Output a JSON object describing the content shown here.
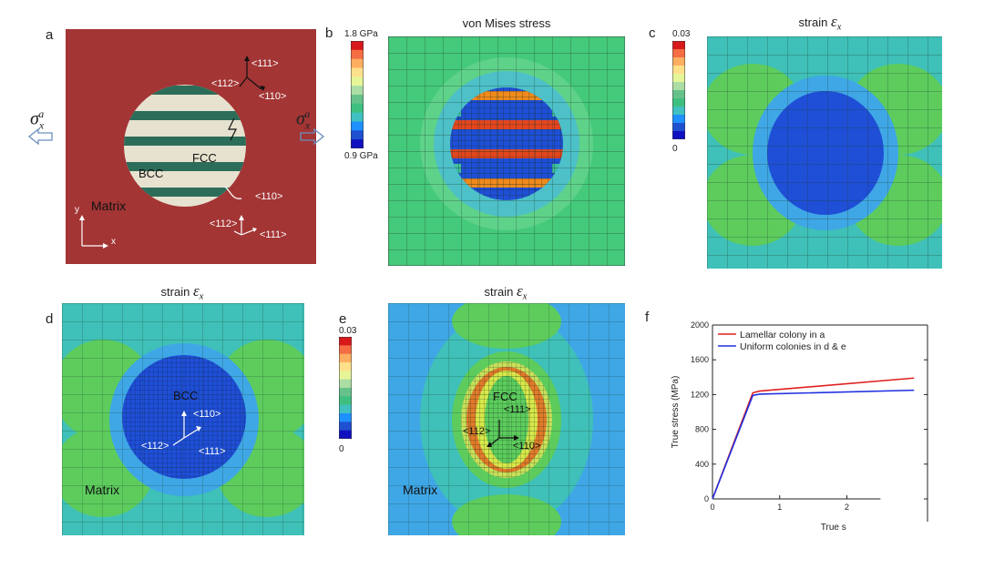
{
  "panels": {
    "a": {
      "label": "a",
      "sigma_left": "σ",
      "sigma_right": "σ",
      "sigma_sub": "x",
      "sigma_sup": "a",
      "fcc": "FCC",
      "bcc": "BCC",
      "matrix": "Matrix",
      "dirs_top": [
        "<111>",
        "<112>",
        "<110>"
      ],
      "dirs_bottom": [
        "<110>",
        "<112>",
        "<111>"
      ],
      "axis_y": "y",
      "axis_x": "x"
    },
    "b": {
      "label": "b",
      "title": "von Mises stress",
      "cbar_max": "1.8 GPa",
      "cbar_min": "0.9 GPa"
    },
    "c": {
      "label": "c",
      "title_text": "strain ",
      "title_sym": "ε",
      "title_sub": "x",
      "cbar_max": "0.03",
      "cbar_min": "0"
    },
    "d": {
      "label": "d",
      "title_text": "strain ",
      "title_sym": "ε",
      "title_sub": "x",
      "bcc": "BCC",
      "matrix": "Matrix",
      "dirs": [
        "<110>",
        "<112>",
        "<111>"
      ]
    },
    "e": {
      "label": "e",
      "title_text": "strain ",
      "title_sym": "ε",
      "title_sub": "x",
      "cbar_max": "0.03",
      "cbar_min": "0",
      "fcc": "FCC",
      "matrix": "Matrix",
      "dirs": [
        "<111>",
        "<112>",
        "<110>"
      ]
    },
    "f": {
      "label": "f"
    }
  },
  "colorbar_colors": [
    "#d7191c",
    "#f46d43",
    "#fdae61",
    "#fee08b",
    "#e6f598",
    "#abdda4",
    "#66c28a",
    "#3fbf7f",
    "#40c0c0",
    "#1e90ff",
    "#1f50d0",
    "#1010c0"
  ],
  "chart_data": {
    "type": "line",
    "xlabel": "True s",
    "ylabel": "True stress (MPa)",
    "ylim": [
      0,
      2000
    ],
    "yticks": [
      "0",
      "400",
      "800",
      "1200",
      "1600",
      "2000"
    ],
    "xticks": [
      "0",
      "1",
      "2"
    ],
    "legend_position": "top-left",
    "series": [
      {
        "name": "Lamellar colony in a",
        "color": "#e0201f",
        "x": [
          0,
          0.6,
          0.7,
          3.0
        ],
        "y": [
          0,
          1220,
          1240,
          1390
        ]
      },
      {
        "name": "Uniform colonies in d & e",
        "color": "#2030e0",
        "x": [
          0,
          0.6,
          0.7,
          3.0
        ],
        "y": [
          0,
          1190,
          1205,
          1250
        ]
      }
    ]
  }
}
